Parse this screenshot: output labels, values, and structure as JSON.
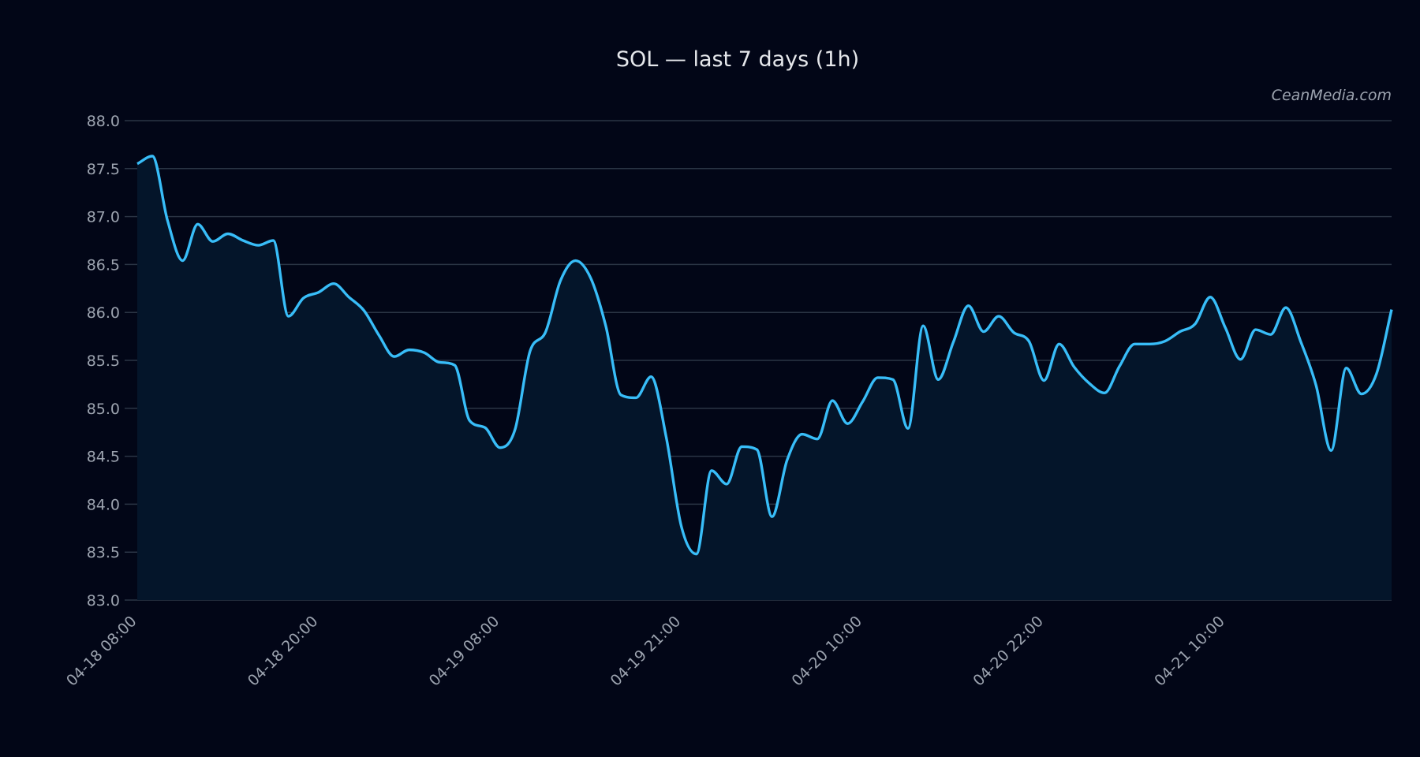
{
  "chart_data": {
    "type": "area",
    "title": "SOL — last 7 days (1h)",
    "watermark": "CeanMedia.com",
    "xlabel": "",
    "ylabel": "",
    "ylim": [
      83.0,
      88.0
    ],
    "yticks": [
      "83.0",
      "83.5",
      "84.0",
      "84.5",
      "85.0",
      "85.5",
      "86.0",
      "86.5",
      "87.0",
      "87.5",
      "88.0"
    ],
    "xticks": [
      {
        "index": 0,
        "label": "04-18 08:00"
      },
      {
        "index": 12,
        "label": "04-18 20:00"
      },
      {
        "index": 24,
        "label": "04-19 08:00"
      },
      {
        "index": 36,
        "label": "04-19 21:00"
      },
      {
        "index": 48,
        "label": "04-20 10:00"
      },
      {
        "index": 60,
        "label": "04-20 22:00"
      },
      {
        "index": 72,
        "label": "04-21 10:00"
      }
    ],
    "grid": true,
    "colors": {
      "background": "#020617",
      "line": "#38bdf8",
      "fill": "#04152a",
      "grid": "#2b3545"
    },
    "values": [
      87.55,
      87.63,
      86.96,
      86.54,
      86.92,
      86.74,
      86.82,
      86.75,
      86.7,
      86.75,
      85.96,
      86.15,
      86.21,
      86.3,
      86.16,
      86.02,
      85.76,
      85.54,
      85.61,
      85.58,
      85.48,
      85.45,
      84.87,
      84.8,
      84.59,
      84.78,
      85.6,
      85.79,
      86.33,
      86.54,
      86.36,
      85.86,
      85.14,
      85.11,
      85.33,
      84.7,
      83.77,
      83.48,
      84.35,
      84.21,
      84.6,
      84.57,
      83.87,
      84.46,
      84.73,
      84.68,
      85.08,
      84.84,
      85.07,
      85.32,
      85.3,
      84.79,
      85.86,
      85.3,
      85.69,
      86.07,
      85.8,
      85.96,
      85.79,
      85.7,
      85.29,
      85.67,
      85.43,
      85.26,
      85.16,
      85.44,
      85.67,
      85.67,
      85.7,
      85.8,
      85.88,
      86.16,
      85.84,
      85.51,
      85.82,
      85.77,
      86.05,
      85.69,
      85.24,
      84.56,
      85.42,
      85.15,
      85.36,
      86.03
    ]
  }
}
